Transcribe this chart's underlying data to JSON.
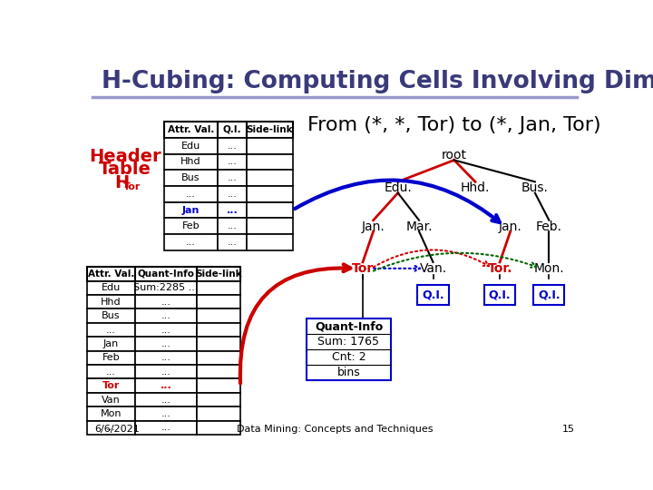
{
  "title": "H-Cubing: Computing Cells Involving Dimension City",
  "title_color": "#3a3a7a",
  "title_fontsize": 19,
  "bg_color": "#ffffff",
  "separator_color": "#9999cc",
  "header_color": "#cc0000",
  "upper_table_headers": [
    "Attr. Val.",
    "Q.I.",
    "Side-link"
  ],
  "upper_table_rows": [
    [
      "Edu",
      "...",
      ""
    ],
    [
      "Hhd",
      "...",
      ""
    ],
    [
      "Bus",
      "...",
      ""
    ],
    [
      "...",
      "...",
      ""
    ],
    [
      "Jan",
      "...",
      ""
    ],
    [
      "Feb",
      "...",
      ""
    ],
    [
      "...",
      "...",
      ""
    ]
  ],
  "lower_table_headers": [
    "Attr. Val.",
    "Quant-Info",
    "Side-link"
  ],
  "lower_table_rows": [
    [
      "Edu",
      "Sum:2285 ...",
      ""
    ],
    [
      "Hhd",
      "...",
      ""
    ],
    [
      "Bus",
      "...",
      ""
    ],
    [
      "...",
      "...",
      ""
    ],
    [
      "Jan",
      "...",
      ""
    ],
    [
      "Feb",
      "...",
      ""
    ],
    [
      "...",
      "...",
      ""
    ],
    [
      "Tor",
      "...",
      ""
    ],
    [
      "Van",
      "...",
      ""
    ],
    [
      "Mon",
      "...",
      ""
    ],
    [
      "...",
      "...",
      ""
    ]
  ],
  "from_text": "From (*, *, Tor) to (*, Jan, Tor)",
  "from_fontsize": 16,
  "tree_root": "root",
  "tree_level1": [
    "Edu.",
    "Hhd.",
    "Bus."
  ],
  "tree_level2": [
    "Jan.",
    "Mar.",
    "Jan.",
    "Feb."
  ],
  "tree_level3": [
    "Tor",
    "Van.",
    "Tor.",
    "Mon."
  ],
  "quant_info_box": [
    "Quant-Info",
    "Sum: 1765",
    "Cnt: 2",
    "bins"
  ],
  "footer_left": "6/6/2021",
  "footer_right": "Data Mining: Concepts and Techniques",
  "footer_page": "15"
}
